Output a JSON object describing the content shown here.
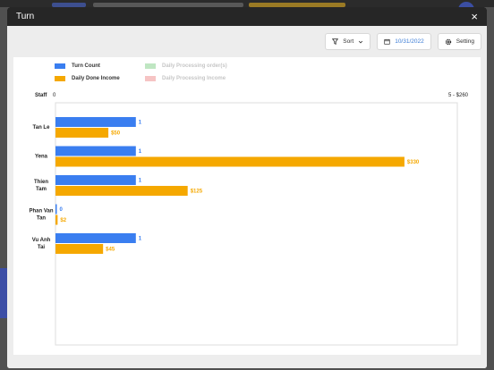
{
  "modal": {
    "title": "Turn",
    "close_icon": "×"
  },
  "toolbar": {
    "sort_label": "Sort",
    "date_value": "10/31/2022",
    "setting_label": "Setting"
  },
  "legend": [
    {
      "label": "Turn Count",
      "color": "#3a7ef0",
      "active": true
    },
    {
      "label": "Daily Done Income",
      "color": "#f5a800",
      "active": true
    },
    {
      "label": "Daily Processing order(s)",
      "color": "#bfe6c2",
      "active": false
    },
    {
      "label": "Daily Processing Income",
      "color": "#f6c4c4",
      "active": false
    }
  ],
  "axis": {
    "staff_label": "Staff",
    "zero_label": "0",
    "range_label": "5 - $260"
  },
  "chart_data": {
    "type": "bar",
    "orientation": "horizontal",
    "categories": [
      [
        "Tan Le"
      ],
      [
        "Yena"
      ],
      [
        "Thien",
        "Tam"
      ],
      [
        "Phan Van",
        "Tan"
      ],
      [
        "Vu Anh",
        "Tai"
      ]
    ],
    "series": [
      {
        "name": "Turn Count",
        "color": "#3a7ef0",
        "values": [
          1,
          1,
          1,
          0,
          1
        ],
        "labels": [
          "1",
          "1",
          "1",
          "0",
          "1"
        ],
        "max": 5
      },
      {
        "name": "Daily Done Income",
        "color": "#f5a800",
        "values": [
          50,
          330,
          125,
          2,
          45
        ],
        "labels": [
          "$50",
          "$330",
          "$125",
          "$2",
          "$45"
        ],
        "max": 380
      }
    ]
  }
}
